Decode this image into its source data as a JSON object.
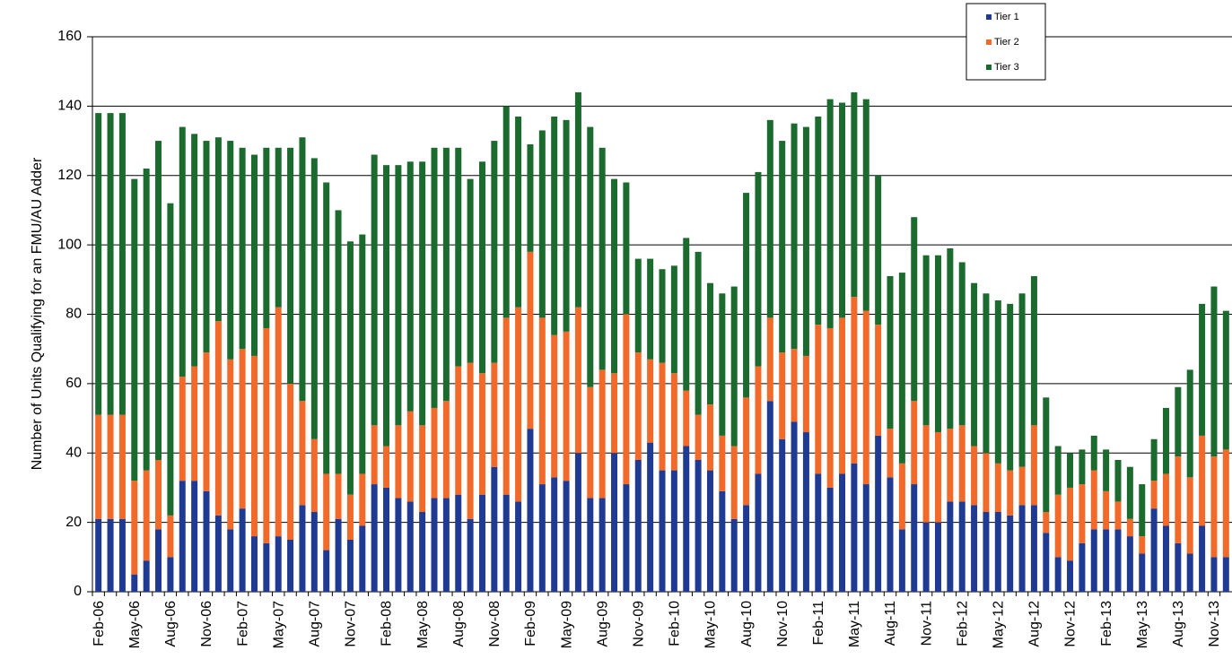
{
  "chart_data": {
    "type": "stacked_bar",
    "y_label": "Number of Units Qualifying for an FMU/AU Adder",
    "categories": [
      "Feb-06",
      null,
      null,
      "May-06",
      null,
      null,
      "Aug-06",
      null,
      null,
      "Nov-06",
      null,
      null,
      "Feb-07",
      null,
      null,
      "May-07",
      null,
      null,
      "Aug-07",
      null,
      null,
      "Nov-07",
      null,
      null,
      "Feb-08",
      null,
      null,
      "May-08",
      null,
      null,
      "Aug-08",
      null,
      null,
      "Nov-08",
      null,
      null,
      "Feb-09",
      null,
      null,
      "May-09",
      null,
      null,
      "Aug-09",
      null,
      null,
      "Nov-09",
      null,
      null,
      "Feb-10",
      null,
      null,
      "May-10",
      null,
      null,
      "Aug-10",
      null,
      null,
      "Nov-10",
      null,
      null,
      "Feb-11",
      null,
      null,
      "May-11",
      null,
      null,
      "Aug-11",
      null,
      null,
      "Nov-11",
      null,
      null,
      "Feb-12",
      null,
      null,
      "May-12",
      null,
      null,
      "Aug-12",
      null,
      null,
      "Nov-12",
      null,
      null,
      "Feb-13",
      null,
      null,
      "May-13",
      null,
      null,
      "Aug-13",
      null,
      null,
      "Nov-13",
      null
    ],
    "series": [
      {
        "name": "Tier 1",
        "color": "#1f3a93",
        "values": [
          21,
          21,
          21,
          5,
          9,
          18,
          10,
          32,
          32,
          29,
          22,
          18,
          24,
          16,
          14,
          16,
          15,
          25,
          23,
          12,
          21,
          15,
          19,
          31,
          30,
          27,
          26,
          23,
          27,
          27,
          28,
          21,
          28,
          36,
          28,
          26,
          47,
          31,
          33,
          32,
          40,
          27,
          27,
          40,
          31,
          38,
          43,
          35,
          35,
          42,
          38,
          35,
          29,
          21,
          25,
          34,
          55,
          44,
          49,
          46,
          34,
          30,
          34,
          37,
          31,
          45,
          33,
          18,
          31,
          20,
          20,
          26,
          26,
          25,
          23,
          23,
          22,
          25,
          25,
          17,
          10,
          9,
          14,
          18,
          18,
          18,
          16,
          11,
          24,
          19,
          14,
          11,
          19,
          10,
          10
        ]
      },
      {
        "name": "Tier 2",
        "color": "#f26a2a",
        "values": [
          30,
          30,
          30,
          27,
          26,
          20,
          12,
          30,
          33,
          40,
          56,
          49,
          46,
          52,
          62,
          66,
          45,
          30,
          21,
          22,
          13,
          13,
          15,
          17,
          12,
          21,
          26,
          25,
          26,
          28,
          37,
          45,
          35,
          30,
          51,
          56,
          51,
          48,
          41,
          43,
          42,
          32,
          37,
          23,
          49,
          31,
          24,
          31,
          28,
          16,
          13,
          19,
          16,
          21,
          31,
          31,
          24,
          25,
          21,
          22,
          43,
          46,
          45,
          48,
          50,
          32,
          14,
          19,
          24,
          28,
          26,
          21,
          22,
          17,
          17,
          14,
          13,
          11,
          23,
          6,
          18,
          21,
          17,
          17,
          11,
          8,
          5,
          5,
          8,
          15,
          25,
          22,
          26,
          29,
          31
        ]
      },
      {
        "name": "Tier 3",
        "color": "#1b6b2f",
        "values": [
          87,
          87,
          87,
          87,
          87,
          92,
          90,
          72,
          67,
          61,
          53,
          63,
          58,
          58,
          52,
          46,
          68,
          76,
          81,
          84,
          76,
          73,
          69,
          78,
          81,
          75,
          72,
          76,
          75,
          73,
          63,
          53,
          61,
          64,
          61,
          55,
          31,
          54,
          63,
          61,
          62,
          75,
          64,
          56,
          38,
          27,
          29,
          27,
          31,
          44,
          47,
          35,
          41,
          46,
          59,
          56,
          57,
          61,
          65,
          66,
          60,
          66,
          62,
          59,
          61,
          43,
          44,
          55,
          53,
          49,
          51,
          52,
          47,
          47,
          46,
          47,
          48,
          50,
          43,
          33,
          14,
          10,
          10,
          10,
          12,
          12,
          15,
          15,
          12,
          19,
          20,
          31,
          38,
          49,
          40
        ]
      }
    ],
    "ylim": [
      0,
      160
    ],
    "yticks": [
      0,
      20,
      40,
      60,
      80,
      100,
      120,
      140,
      160
    ],
    "grid": true,
    "legend": "upper-right"
  }
}
